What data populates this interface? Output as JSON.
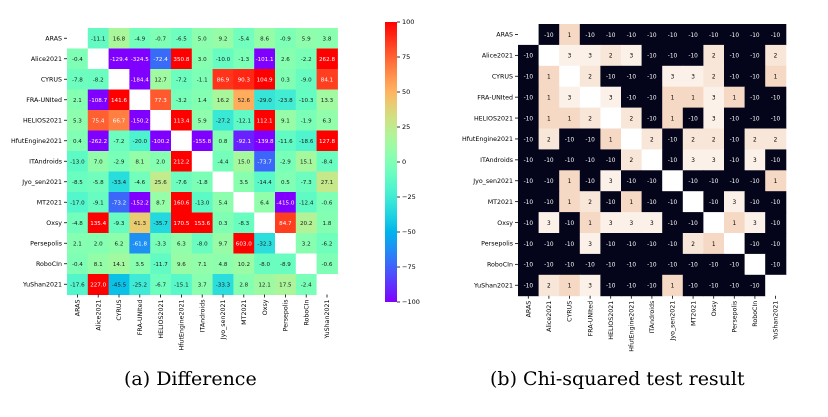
{
  "captions": {
    "a": "(a) Difference",
    "b": "(b) Chi-squared test result"
  },
  "chart_data": [
    {
      "type": "heatmap",
      "title": "",
      "labels": [
        "ARAS",
        "Alice2021",
        "CYRUS",
        "FRA-UNIted",
        "HELIOS2021",
        "HfutEngine2021",
        "ITAndroids",
        "Jyo_sen2021",
        "MT2021",
        "Oxsy",
        "Persepolis",
        "RoboCIn",
        "YuShan2021"
      ],
      "colormap": "rainbow",
      "vmin": -100,
      "vmax": 100,
      "colorbar_ticks": [
        100,
        75,
        50,
        25,
        0,
        -25,
        -50,
        -75,
        -100
      ],
      "values": [
        [
          null,
          -11.1,
          16.8,
          -4.9,
          -0.7,
          -6.5,
          5.0,
          9.2,
          -5.4,
          8.6,
          -0.9,
          5.9,
          3.8
        ],
        [
          -0.4,
          null,
          -129.4,
          -324.5,
          -72.4,
          350.8,
          3.0,
          -10.0,
          -1.3,
          -101.1,
          2.6,
          -2.2,
          262.8
        ],
        [
          -7.8,
          -8.2,
          null,
          -184.4,
          12.7,
          -7.2,
          -1.1,
          86.9,
          90.3,
          104.9,
          0.3,
          -9.0,
          84.1
        ],
        [
          2.1,
          -108.7,
          141.6,
          null,
          77.3,
          -3.2,
          1.4,
          16.2,
          52.6,
          -29.0,
          -23.8,
          -10.3,
          13.3
        ],
        [
          5.3,
          75.4,
          66.7,
          -150.2,
          null,
          113.4,
          5.9,
          -27.2,
          -12.1,
          112.1,
          9.1,
          -1.9,
          6.3
        ],
        [
          0.4,
          -262.2,
          -7.2,
          -20.0,
          -100.2,
          null,
          -155.8,
          0.8,
          -92.1,
          -139.8,
          -11.6,
          -18.6,
          127.8
        ],
        [
          -13.0,
          7.0,
          -2.9,
          8.1,
          2.0,
          212.2,
          null,
          -4.4,
          15.0,
          -73.7,
          -2.9,
          15.1,
          -8.4
        ],
        [
          -8.5,
          -5.8,
          -33.4,
          -4.6,
          25.6,
          -7.6,
          -1.8,
          null,
          3.5,
          -14.4,
          0.5,
          -7.3,
          27.1
        ],
        [
          -17.0,
          -9.1,
          -73.2,
          -152.2,
          8.7,
          160.6,
          -13.0,
          5.4,
          null,
          6.4,
          -415.0,
          -12.4,
          -0.6
        ],
        [
          -4.8,
          135.4,
          -9.3,
          41.3,
          -35.7,
          170.5,
          153.6,
          0.3,
          -8.3,
          null,
          84.7,
          20.2,
          1.8
        ],
        [
          2.1,
          2.0,
          6.2,
          -61.8,
          -3.3,
          6.3,
          -8.0,
          9.7,
          603.0,
          -32.3,
          null,
          3.2,
          -6.2
        ],
        [
          -0.4,
          8.1,
          14.1,
          3.5,
          -11.7,
          9.6,
          7.1,
          4.8,
          10.2,
          -8.0,
          -8.9,
          null,
          -0.6
        ],
        [
          -17.6,
          227.0,
          -45.5,
          -25.2,
          -6.7,
          -15.1,
          3.7,
          -33.3,
          2.8,
          12.1,
          17.5,
          -2.4,
          null
        ]
      ]
    },
    {
      "type": "heatmap",
      "title": "",
      "labels": [
        "ARAS",
        "Alice2021",
        "CYRUS",
        "FRA-UNIted",
        "HELIOS2021",
        "HfutEngine2021",
        "ITAndroids",
        "Jyo_sen2021",
        "MT2021",
        "Oxsy",
        "Persepolis",
        "RoboCIn",
        "YuShan2021"
      ],
      "colormap": "dark-to-peach",
      "values": [
        [
          null,
          -10,
          1,
          -10,
          -10,
          -10,
          -10,
          -10,
          -10,
          -10,
          -10,
          -10,
          -10
        ],
        [
          -10,
          null,
          3,
          3,
          2,
          3,
          -10,
          -10,
          -10,
          2,
          -10,
          -10,
          2
        ],
        [
          -10,
          1,
          null,
          2,
          -10,
          -10,
          -10,
          3,
          3,
          2,
          -10,
          -10,
          1
        ],
        [
          -10,
          1,
          3,
          null,
          3,
          -10,
          -10,
          1,
          1,
          3,
          1,
          -10,
          -10
        ],
        [
          -10,
          1,
          1,
          2,
          null,
          2,
          -10,
          1,
          -10,
          3,
          -10,
          -10,
          -10
        ],
        [
          -10,
          2,
          -10,
          -10,
          1,
          null,
          2,
          -10,
          2,
          2,
          -10,
          2,
          2
        ],
        [
          -10,
          -10,
          -10,
          -10,
          -10,
          2,
          null,
          -10,
          3,
          3,
          -10,
          3,
          -10
        ],
        [
          -10,
          -10,
          1,
          -10,
          3,
          -10,
          -10,
          null,
          -10,
          -10,
          -10,
          -10,
          1
        ],
        [
          -10,
          -10,
          1,
          2,
          -10,
          1,
          -10,
          -10,
          null,
          -10,
          3,
          -10,
          -10
        ],
        [
          -10,
          3,
          -10,
          1,
          3,
          3,
          3,
          -10,
          -10,
          null,
          1,
          3,
          -10
        ],
        [
          -10,
          -10,
          -10,
          3,
          -10,
          -10,
          -10,
          -10,
          2,
          1,
          null,
          -10,
          -10
        ],
        [
          -10,
          -10,
          -10,
          -10,
          -10,
          -10,
          -10,
          -10,
          -10,
          -10,
          -10,
          null,
          -10
        ],
        [
          -10,
          2,
          1,
          3,
          -10,
          -10,
          -10,
          1,
          -10,
          -10,
          -10,
          -10,
          null
        ]
      ]
    }
  ]
}
